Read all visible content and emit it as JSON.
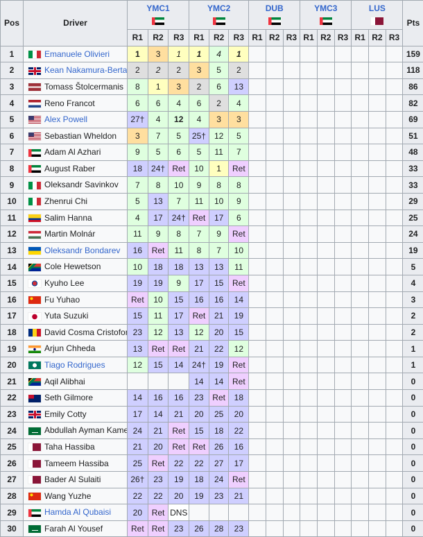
{
  "headers": {
    "pos": "Pos",
    "driver": "Driver",
    "pts": "Pts",
    "race_labels": [
      "R1",
      "R2",
      "R3"
    ]
  },
  "rounds": [
    {
      "name": "YMC1",
      "flag": "are"
    },
    {
      "name": "YMC2",
      "flag": "are"
    },
    {
      "name": "DUB",
      "flag": "are"
    },
    {
      "name": "YMC3",
      "flag": "are"
    },
    {
      "name": "LUS",
      "flag": "qat"
    }
  ],
  "colors": {
    "gold": "#ffffbf",
    "silver": "#dfdfdf",
    "bronze": "#ffdf9f",
    "points": "#dfffdf",
    "no_points": "#cfcfff",
    "retired": "#efcfff",
    "dns": "#ffffff",
    "empty": "#f8f9fa",
    "link": "#3366cc",
    "header": "#eaecf0",
    "border": "#a2a9b1"
  },
  "rows": [
    {
      "pos": "1",
      "flag": "ita",
      "driver": "Emanuele Olivieri",
      "linked": true,
      "results": [
        {
          "v": "1",
          "b": true
        },
        "3",
        {
          "v": "1",
          "i": true
        },
        {
          "v": "1",
          "b": true,
          "i": true
        },
        {
          "v": "4",
          "i": true
        },
        {
          "v": "1",
          "b": true,
          "i": true
        }
      ],
      "pts": "159"
    },
    {
      "pos": "2",
      "flag": "gbr",
      "driver": "Kean Nakamura-Berta",
      "linked": true,
      "results": [
        "2",
        {
          "v": "2",
          "i": true
        },
        "2",
        "3",
        "5",
        "2"
      ],
      "pts": "118"
    },
    {
      "pos": "3",
      "flag": "lva",
      "driver": "Tomass Štolcermanis",
      "results": [
        "8",
        "1",
        "3",
        "2",
        "6",
        "13"
      ],
      "pts": "86"
    },
    {
      "pos": "4",
      "flag": "nld",
      "driver": "Reno Francot",
      "results": [
        "6",
        "6",
        "4",
        "6",
        "2",
        "4"
      ],
      "pts": "82"
    },
    {
      "pos": "5",
      "flag": "usa",
      "driver": "Alex Powell",
      "linked": true,
      "results": [
        "27†",
        "4",
        {
          "v": "12",
          "b": true
        },
        "4",
        "3",
        "3"
      ],
      "pts": "69"
    },
    {
      "pos": "6",
      "flag": "usa",
      "driver": "Sebastian Wheldon",
      "results": [
        "3",
        "7",
        "5",
        "25†",
        "12",
        "5"
      ],
      "pts": "51"
    },
    {
      "pos": "7",
      "flag": "are",
      "driver": "Adam Al Azhari",
      "results": [
        "9",
        "5",
        "6",
        "5",
        "11",
        "7"
      ],
      "pts": "48"
    },
    {
      "pos": "8",
      "flag": "are",
      "driver": "August Raber",
      "results": [
        "18",
        "24†",
        "Ret",
        "10",
        "1",
        "Ret"
      ],
      "pts": "33"
    },
    {
      "pos": "9",
      "flag": "ita",
      "driver": "Oleksandr Savinkov",
      "results": [
        "7",
        "8",
        "10",
        "9",
        "8",
        "8"
      ],
      "pts": "33"
    },
    {
      "pos": "10",
      "flag": "ita",
      "driver": "Zhenrui Chi",
      "results": [
        "5",
        "13",
        "7",
        "11",
        "10",
        "9"
      ],
      "pts": "29"
    },
    {
      "pos": "11",
      "flag": "col",
      "driver": "Salim Hanna",
      "results": [
        "4",
        "17",
        "24†",
        "Ret",
        "17",
        "6"
      ],
      "pts": "25"
    },
    {
      "pos": "12",
      "flag": "hun",
      "driver": "Martin Molnár",
      "results": [
        "11",
        "9",
        "8",
        "7",
        "9",
        "Ret"
      ],
      "pts": "24"
    },
    {
      "pos": "13",
      "flag": "ukr",
      "driver": "Oleksandr Bondarev",
      "linked": true,
      "results": [
        "16",
        "Ret",
        "11",
        "8",
        "7",
        "10"
      ],
      "pts": "19"
    },
    {
      "pos": "14",
      "flag": "zaf",
      "driver": "Cole Hewetson",
      "results": [
        "10",
        "18",
        "18",
        "13",
        "13",
        "11"
      ],
      "pts": "5"
    },
    {
      "pos": "15",
      "flag": "kor",
      "driver": "Kyuho Lee",
      "results": [
        "19",
        "19",
        "9",
        "17",
        "15",
        "Ret"
      ],
      "pts": "4"
    },
    {
      "pos": "16",
      "flag": "chn",
      "driver": "Fu Yuhao",
      "results": [
        "Ret",
        "10",
        "15",
        "16",
        "16",
        "14"
      ],
      "pts": "3"
    },
    {
      "pos": "17",
      "flag": "jpn",
      "driver": "Yuta Suzuki",
      "results": [
        "15",
        "11",
        "17",
        "Ret",
        "21",
        "19"
      ],
      "pts": "2"
    },
    {
      "pos": "18",
      "flag": "rou",
      "driver": "David Cosma Cristofor",
      "results": [
        "23",
        "12",
        "13",
        "12",
        "20",
        "15"
      ],
      "pts": "2"
    },
    {
      "pos": "19",
      "flag": "ind",
      "driver": "Arjun Chheda",
      "results": [
        "13",
        "Ret",
        "Ret",
        "21",
        "22",
        "12"
      ],
      "pts": "1"
    },
    {
      "pos": "20",
      "flag": "mac",
      "driver": "Tiago Rodrigues",
      "linked": true,
      "results": [
        "12",
        "15",
        "14",
        "24†",
        "19",
        "Ret"
      ],
      "pts": "1"
    },
    {
      "pos": "21",
      "flag": "zaf",
      "driver": "Aqil Alibhai",
      "results": [
        "",
        "",
        "",
        "14",
        "14",
        "Ret"
      ],
      "pts": "0"
    },
    {
      "pos": "22",
      "flag": "aus",
      "driver": "Seth Gilmore",
      "results": [
        "14",
        "16",
        "16",
        "23",
        "Ret",
        "18"
      ],
      "pts": "0"
    },
    {
      "pos": "23",
      "flag": "gbr",
      "driver": "Emily Cotty",
      "results": [
        "17",
        "14",
        "21",
        "20",
        "25",
        "20"
      ],
      "pts": "0"
    },
    {
      "pos": "24",
      "flag": "sau",
      "driver": "Abdullah Ayman Kamel",
      "results": [
        "24",
        "21",
        "Ret",
        "15",
        "18",
        "22"
      ],
      "pts": "0"
    },
    {
      "pos": "25",
      "flag": "qat",
      "driver": "Taha Hassiba",
      "results": [
        "21",
        "20",
        "Ret",
        "Ret",
        "26",
        "16"
      ],
      "pts": "0"
    },
    {
      "pos": "26",
      "flag": "qat",
      "driver": "Tameem Hassiba",
      "results": [
        "25",
        "Ret",
        "22",
        "22",
        "27",
        "17"
      ],
      "pts": "0"
    },
    {
      "pos": "27",
      "flag": "qat",
      "driver": "Bader Al Sulaiti",
      "results": [
        "26†",
        "23",
        "19",
        "18",
        "24",
        "Ret"
      ],
      "pts": "0"
    },
    {
      "pos": "28",
      "flag": "chn",
      "driver": "Wang Yuzhe",
      "results": [
        "22",
        "22",
        "20",
        "19",
        "23",
        "21"
      ],
      "pts": "0"
    },
    {
      "pos": "29",
      "flag": "are",
      "driver": "Hamda Al Qubaisi",
      "linked": true,
      "results": [
        "20",
        "Ret",
        "DNS",
        "",
        "",
        ""
      ],
      "pts": "0"
    },
    {
      "pos": "30",
      "flag": "sau",
      "driver": "Farah Al Yousef",
      "results": [
        "Ret",
        "Ret",
        "23",
        "26",
        "28",
        "23"
      ],
      "pts": "0"
    }
  ]
}
